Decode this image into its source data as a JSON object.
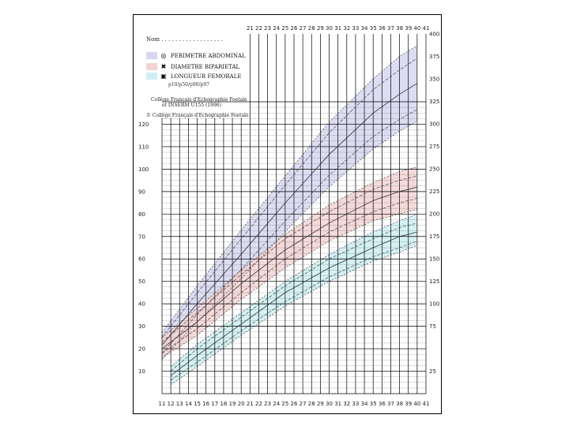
{
  "header": {
    "name_label": "Nom . . . . . . . . . . . . . . . . . .",
    "legend": [
      {
        "label": "PERIMETRE ABDOMINAL",
        "swatch_color": "#d6d6f0",
        "marker": "ring-marker-icon"
      },
      {
        "label": "DIAMETRE BIPARIETAL",
        "swatch_color": "#f3d3d3",
        "marker": "cross-marker-icon"
      },
      {
        "label": "LONGUEUR FEMORALE",
        "swatch_color": "#cdeff2",
        "marker": "square-marker-icon"
      }
    ],
    "reference_line": "p10/p50/p90/p97",
    "credit_line1": "Collège Français d'Echographie Foetale",
    "credit_line2": "et INSERM U155 (1996)",
    "copyright": "© Collège Français d'Echographie Foetale"
  },
  "chart_data": {
    "type": "line",
    "x_tick_labels": [
      "11",
      "12",
      "13",
      "14",
      "15",
      "16",
      "17",
      "18",
      "19",
      "20",
      "21",
      "22",
      "23",
      "24",
      "25",
      "26",
      "27",
      "28",
      "29",
      "30",
      "31",
      "32",
      "33",
      "34",
      "35",
      "36",
      "37",
      "38",
      "39",
      "40",
      "41"
    ],
    "top_x_tick_labels": [
      "21",
      "22",
      "23",
      "24",
      "25",
      "26",
      "27",
      "28",
      "29",
      "30",
      "31",
      "32",
      "33",
      "34",
      "35",
      "36",
      "37",
      "38",
      "39",
      "40",
      "41"
    ],
    "xlim": [
      11,
      41
    ],
    "left_ylim": [
      0,
      130
    ],
    "right_ylim": [
      0,
      400
    ],
    "left_tick_labels": [
      "10",
      "20",
      "30",
      "40",
      "50",
      "60",
      "70",
      "80",
      "90",
      "100",
      "110",
      "120"
    ],
    "right_tick_labels": [
      "25",
      "75",
      "100",
      "125",
      "150",
      "175",
      "200",
      "225",
      "250",
      "275",
      "300",
      "325",
      "350",
      "375",
      "400"
    ],
    "grid": true,
    "series": [
      {
        "name": "PERIMETRE ABDOMINAL",
        "axis": "right",
        "color": "#d6d6f0",
        "x": [
          11,
          15,
          20,
          25,
          30,
          35,
          38,
          40
        ],
        "percentiles": {
          "p3": [
            38,
            80,
            128,
            180,
            230,
            272,
            292,
            303
          ],
          "p10": [
            45,
            88,
            138,
            192,
            243,
            286,
            305,
            316
          ],
          "p50": [
            54,
            100,
            155,
            212,
            266,
            312,
            333,
            345
          ],
          "p90": [
            63,
            112,
            172,
            232,
            290,
            338,
            360,
            373
          ],
          "p97": [
            68,
            120,
            182,
            242,
            302,
            350,
            375,
            387
          ]
        }
      },
      {
        "name": "DIAMETRE BIPARIETAL",
        "axis": "left",
        "color": "#f3d3d3",
        "x": [
          11,
          15,
          20,
          25,
          30,
          35,
          38,
          40
        ],
        "percentiles": {
          "p3": [
            16,
            26,
            42,
            56,
            68,
            77,
            80,
            82
          ],
          "p10": [
            18,
            29,
            45,
            60,
            72,
            81,
            85,
            87
          ],
          "p50": [
            20,
            32,
            49,
            64,
            76,
            86,
            90,
            92
          ],
          "p90": [
            23,
            36,
            53,
            69,
            81,
            91,
            95,
            97
          ],
          "p97": [
            25,
            38,
            55,
            71,
            84,
            94,
            99,
            101
          ]
        }
      },
      {
        "name": "LONGUEUR FEMORALE",
        "axis": "left",
        "color": "#cdeff2",
        "x": [
          12,
          15,
          20,
          25,
          30,
          35,
          38,
          40
        ],
        "percentiles": {
          "p3": [
            4,
            12,
            26,
            39,
            50,
            59,
            63,
            66
          ],
          "p10": [
            6,
            14,
            28,
            41,
            52,
            61,
            65,
            68
          ],
          "p50": [
            8,
            17,
            31,
            45,
            56,
            65,
            70,
            72
          ],
          "p90": [
            10,
            20,
            34,
            48,
            60,
            69,
            74,
            76
          ],
          "p97": [
            12,
            22,
            36,
            50,
            62,
            72,
            77,
            80
          ]
        }
      }
    ]
  }
}
